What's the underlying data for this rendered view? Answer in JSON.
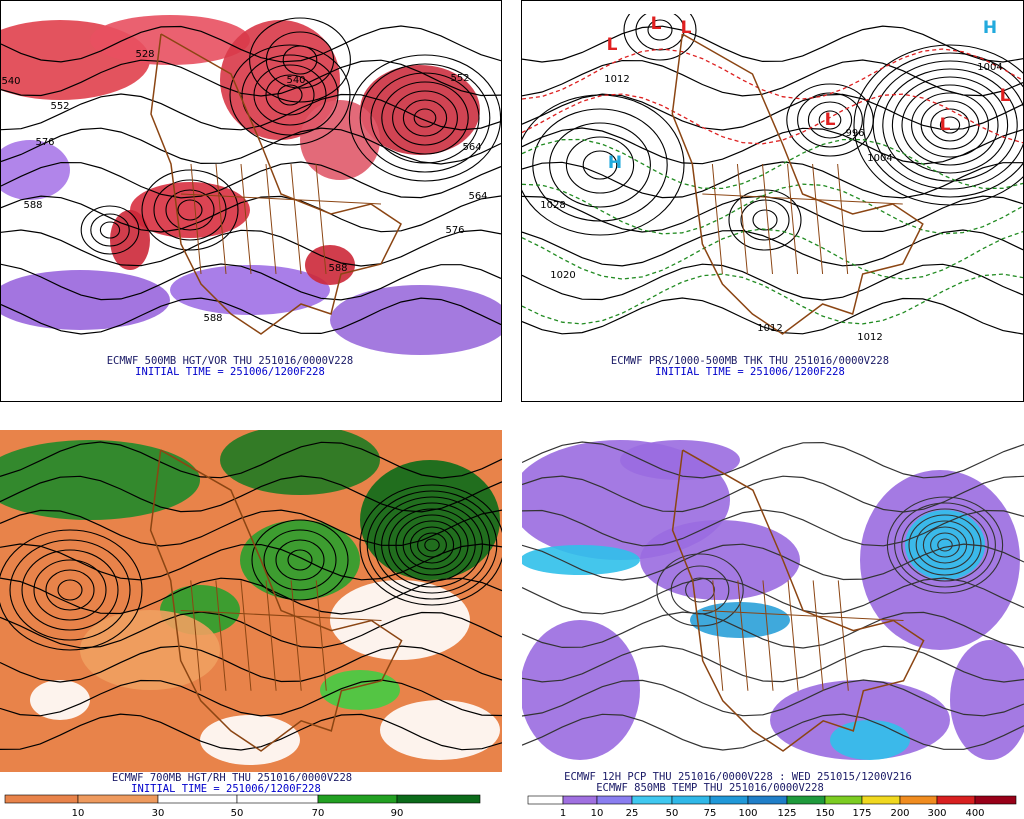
{
  "panels": [
    {
      "caption": [
        "ECMWF 500MB HGT/VOR THU 251016/0000V228",
        "INITIAL TIME = 251006/1200F228"
      ],
      "labels": [
        "528",
        "540",
        "552",
        "552",
        "576",
        "564",
        "588",
        "576",
        "564",
        "588",
        "588",
        "540"
      ]
    },
    {
      "caption": [
        "ECMWF PRS/1000-500MB THK THU 251016/0000V228",
        "INITIAL TIME = 251006/1200F228"
      ],
      "labels": [
        "L",
        "L",
        "L",
        "H",
        "L",
        "L",
        "L",
        "H",
        "1028",
        "1020",
        "1004",
        "996",
        "1012",
        "1012",
        "1012",
        "1004"
      ]
    },
    {
      "caption": [
        "ECMWF 700MB HGT/RH THU 251016/0000V228",
        "INITIAL TIME = 251006/1200F228"
      ],
      "colorbar": {
        "labels": [
          10,
          30,
          50,
          70,
          90
        ],
        "colors": [
          "#e8834a",
          "#ee9a5e",
          "#ffffff",
          "#ffffff",
          "#22a022",
          "#0b6b1a"
        ]
      }
    },
    {
      "caption": [
        "ECMWF 12H PCP THU 251016/0000V228 : WED 251015/1200V216",
        "ECMWF 850MB TEMP THU 251016/0000V228"
      ],
      "colorbar": {
        "labels": [
          1,
          10,
          25,
          50,
          75,
          100,
          125,
          150,
          175,
          200,
          300,
          400
        ],
        "colors": [
          "#ffffff",
          "#a070e0",
          "#8a7ef0",
          "#40c8f0",
          "#30b8e8",
          "#2098d8",
          "#1f7ec8",
          "#1f9a3c",
          "#7ccc22",
          "#f0d820",
          "#f08c20",
          "#d82020",
          "#980018"
        ]
      }
    }
  ]
}
